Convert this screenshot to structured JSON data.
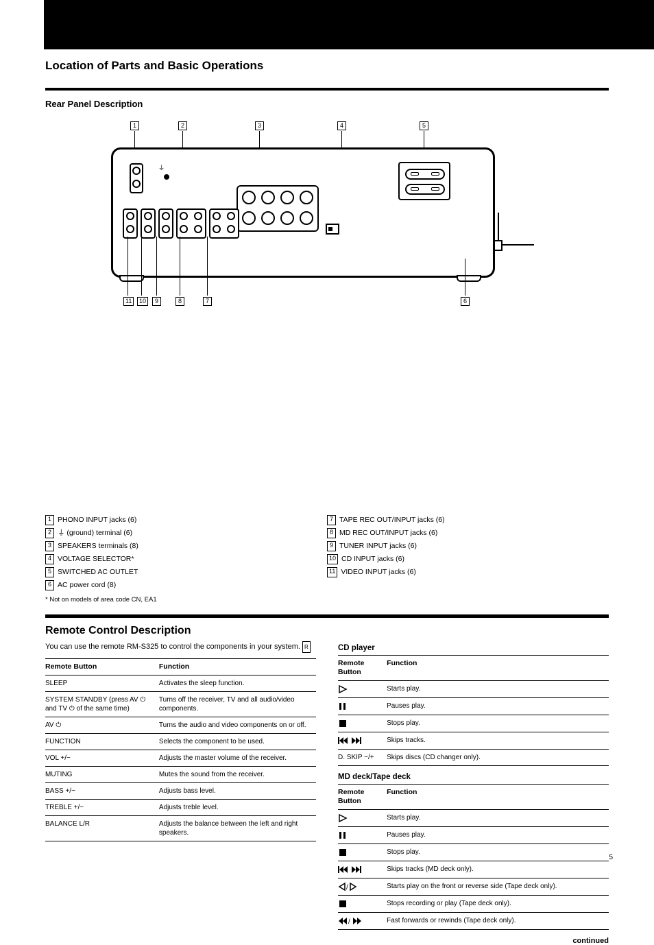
{
  "rear_panel": {
    "title": "Rear Panel Description",
    "top_callouts": [
      "1",
      "2",
      "3",
      "4",
      "5"
    ],
    "bottom_callouts": [
      "11",
      "10",
      "9",
      "8",
      "7",
      "6"
    ],
    "legend_left": [
      {
        "n": "1",
        "text": "PHONO INPUT jacks (6)"
      },
      {
        "n": "2",
        "text": "(ground) terminal (6)",
        "hasGround": true
      },
      {
        "n": "3",
        "text": "SPEAKERS terminals (8)"
      },
      {
        "n": "4",
        "text": "VOLTAGE SELECTOR*"
      },
      {
        "n": "5",
        "text": "SWITCHED AC OUTLET"
      },
      {
        "n": "6",
        "text": "AC power cord (8)"
      }
    ],
    "legend_right": [
      {
        "n": "7",
        "text": "TAPE REC OUT/INPUT jacks (6)"
      },
      {
        "n": "8",
        "text": "MD REC OUT/INPUT jacks (6)"
      },
      {
        "n": "9",
        "text": "TUNER INPUT jacks (6)"
      },
      {
        "n": "10",
        "text": "CD INPUT jacks (6)"
      },
      {
        "n": "11",
        "text": "VIDEO INPUT jacks (6)"
      }
    ],
    "footnote": "* Not on models of area code CN, EA1"
  },
  "remote": {
    "title": "Remote Control Description",
    "intro": "You can use the remote RM-S325 to control the components in your system.",
    "table1_header": [
      "Remote Button",
      "Function"
    ],
    "table1": [
      {
        "a": "SLEEP",
        "b": "Activates the sleep function."
      },
      {
        "a": "SYSTEM STANDBY (press AV ⏻ and TV ⏻ of the same time)",
        "b": "Turns off the receiver, TV and all audio/video components."
      },
      {
        "a": "AV ⏻",
        "b": "Turns the audio and video components on or off."
      },
      {
        "a": "FUNCTION",
        "b": "Selects the component to be used."
      },
      {
        "a": "VOL +/−",
        "b": "Adjusts the master volume of the receiver."
      },
      {
        "a": "MUTING",
        "b": "Mutes the sound from the receiver."
      },
      {
        "a": "BASS +/−",
        "b": "Adjusts bass level."
      },
      {
        "a": "TREBLE +/−",
        "b": "Adjusts treble level."
      },
      {
        "a": "BALANCE L/R",
        "b": "Adjusts the balance between the left and right speakers."
      }
    ],
    "cd_label": "CD player",
    "cd_header": [
      "Remote Button",
      "Function"
    ],
    "cd": [
      {
        "icon": "play",
        "b": "Starts play."
      },
      {
        "icon": "pause",
        "b": "Pauses play."
      },
      {
        "icon": "stop",
        "b": "Stops play."
      },
      {
        "icon": "skip",
        "b": "Skips tracks."
      },
      {
        "icon": "",
        "a": "D. SKIP −/+",
        "b": "Skips discs (CD changer only)."
      }
    ],
    "md_label": "MD deck/Tape deck",
    "md_header": [
      "Remote Button",
      "Function"
    ],
    "md": [
      {
        "icon": "play",
        "b": "Starts play."
      },
      {
        "icon": "pause",
        "b": "Pauses play."
      },
      {
        "icon": "stop",
        "b": "Stops play."
      },
      {
        "icon": "skip",
        "b": "Skips tracks (MD deck only)."
      },
      {
        "icon": "playfwd",
        "b": "Starts play on the front or reverse side (Tape deck only)."
      },
      {
        "icon": "stop",
        "b": "Stops recording or play (Tape deck only)."
      },
      {
        "icon": "ffrew",
        "b": "Fast forwards or rewinds (Tape deck only)."
      }
    ],
    "continued": "continued"
  },
  "page_footer": "5"
}
